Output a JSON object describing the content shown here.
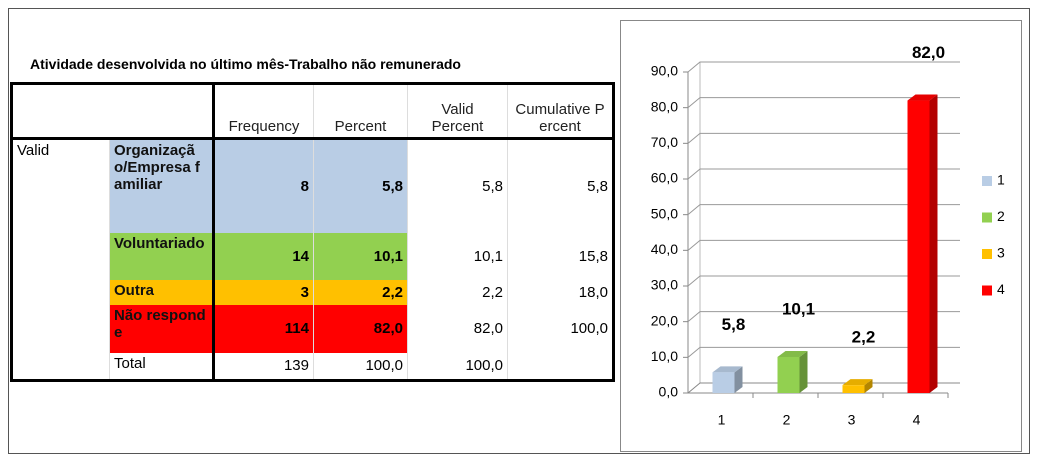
{
  "table": {
    "title": "Atividade desenvolvida no último mês-Trabalho não remunerado",
    "columns": [
      "Frequency",
      "Percent",
      "Valid Percent",
      "Cumulative Percent"
    ],
    "group": "Valid",
    "rows": [
      {
        "category": "Organização/Empresa familiar",
        "frequency": "8",
        "percent": "5,8",
        "valid_percent": "5,8",
        "cumulative_percent": "5,8"
      },
      {
        "category": "Voluntariado",
        "frequency": "14",
        "percent": "10,1",
        "valid_percent": "10,1",
        "cumulative_percent": "15,8"
      },
      {
        "category": "Outra",
        "frequency": "3",
        "percent": "2,2",
        "valid_percent": "2,2",
        "cumulative_percent": "18,0"
      },
      {
        "category": "Não responde",
        "frequency": "114",
        "percent": "82,0",
        "valid_percent": "82,0",
        "cumulative_percent": "100,0"
      }
    ],
    "total": {
      "label": "Total",
      "frequency": "139",
      "percent": "100,0",
      "valid_percent": "100,0"
    }
  },
  "chart_data": {
    "type": "bar3d",
    "categories": [
      "1",
      "2",
      "3",
      "4"
    ],
    "values": [
      5.8,
      10.1,
      2.2,
      82.0
    ],
    "value_labels": [
      "5,8",
      "10,1",
      "2,2",
      "82,0"
    ],
    "colors": [
      "#b9cde5",
      "#92d050",
      "#ffc000",
      "#ff0000"
    ],
    "ylim": [
      0,
      90
    ],
    "yticks": [
      {
        "value": 0,
        "label": "0,0"
      },
      {
        "value": 10,
        "label": "10,0"
      },
      {
        "value": 20,
        "label": "20,0"
      },
      {
        "value": 30,
        "label": "30,0"
      },
      {
        "value": 40,
        "label": "40,0"
      },
      {
        "value": 50,
        "label": "50,0"
      },
      {
        "value": 60,
        "label": "60,0"
      },
      {
        "value": 70,
        "label": "70,0"
      },
      {
        "value": 80,
        "label": "80,0"
      },
      {
        "value": 90,
        "label": "90,0"
      }
    ],
    "grid": true,
    "legend": "right"
  }
}
